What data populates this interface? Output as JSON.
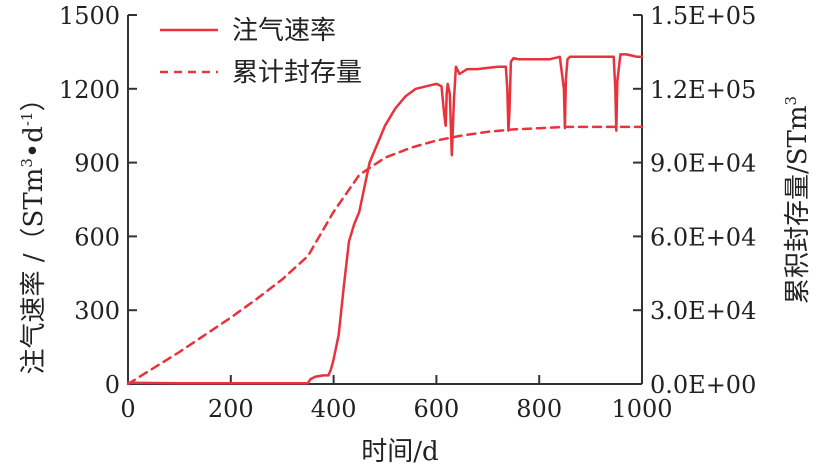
{
  "chart_data": {
    "type": "line",
    "xlabel": "时间/d",
    "ylabel_left": {
      "text": "注气速率 /（STm",
      "sup1": "3",
      "mid": "•d",
      "sup2": "-1",
      "end": "）"
    },
    "ylabel_right": {
      "text": "累积封存量/STm",
      "sup": "3"
    },
    "xlim": [
      0,
      1000
    ],
    "ylim_left": [
      0,
      1500
    ],
    "ylim_right": [
      0,
      150000
    ],
    "x_ticks": [
      "0",
      "200",
      "400",
      "600",
      "800",
      "1000"
    ],
    "y_left_ticks": [
      "0",
      "300",
      "600",
      "900",
      "1200",
      "1500"
    ],
    "y_right_ticks": [
      "0.0E+00",
      "3.0E+04",
      "6.0E+04",
      "9.0E+04",
      "1.2E+05",
      "1.5E+05"
    ],
    "legend": {
      "placement": "top-left",
      "items": [
        "注气速率",
        "累计封存量"
      ]
    },
    "grid": false,
    "colors": {
      "series": "#e8323c",
      "axis": "#333333"
    },
    "series": [
      {
        "name": "注气速率",
        "axis": "left",
        "style": "solid",
        "x": [
          0,
          100,
          200,
          300,
          350,
          355,
          365,
          380,
          390,
          395,
          400,
          410,
          420,
          430,
          440,
          450,
          460,
          470,
          480,
          490,
          500,
          520,
          540,
          560,
          580,
          600,
          610,
          615,
          618,
          620,
          622,
          626,
          630,
          634,
          638,
          645,
          660,
          680,
          700,
          720,
          735,
          738,
          740,
          742,
          745,
          750,
          760,
          780,
          800,
          820,
          840,
          848,
          850,
          852,
          855,
          860,
          880,
          900,
          930,
          945,
          948,
          950,
          952,
          958,
          970,
          990,
          1000
        ],
        "y": [
          5,
          3,
          3,
          3,
          3,
          20,
          30,
          35,
          35,
          60,
          100,
          200,
          400,
          580,
          650,
          700,
          800,
          900,
          950,
          1000,
          1050,
          1120,
          1170,
          1200,
          1210,
          1220,
          1210,
          1100,
          1050,
          1180,
          1220,
          1180,
          930,
          1150,
          1290,
          1260,
          1280,
          1280,
          1285,
          1290,
          1290,
          1200,
          1030,
          1100,
          1310,
          1325,
          1320,
          1320,
          1320,
          1320,
          1330,
          1200,
          1040,
          1240,
          1320,
          1330,
          1330,
          1330,
          1330,
          1330,
          1200,
          1030,
          1230,
          1340,
          1340,
          1330,
          1330
        ]
      },
      {
        "name": "累计封存量",
        "axis": "right",
        "style": "dashed",
        "x": [
          0,
          50,
          100,
          150,
          200,
          250,
          300,
          350,
          400,
          450,
          500,
          550,
          600,
          650,
          700,
          750,
          800,
          850,
          900,
          950,
          1000
        ],
        "y": [
          0,
          6500,
          13000,
          20000,
          27000,
          34500,
          42500,
          52000,
          70000,
          85000,
          92000,
          96000,
          99000,
          101000,
          102500,
          103500,
          104000,
          104500,
          104500,
          104500,
          104500
        ]
      }
    ]
  }
}
